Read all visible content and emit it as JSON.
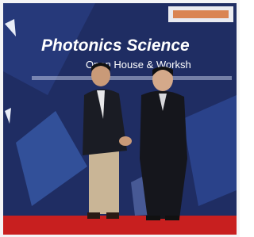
{
  "banner": {
    "title": "Photonics Science",
    "subtitle": "Open House & Worksh"
  }
}
